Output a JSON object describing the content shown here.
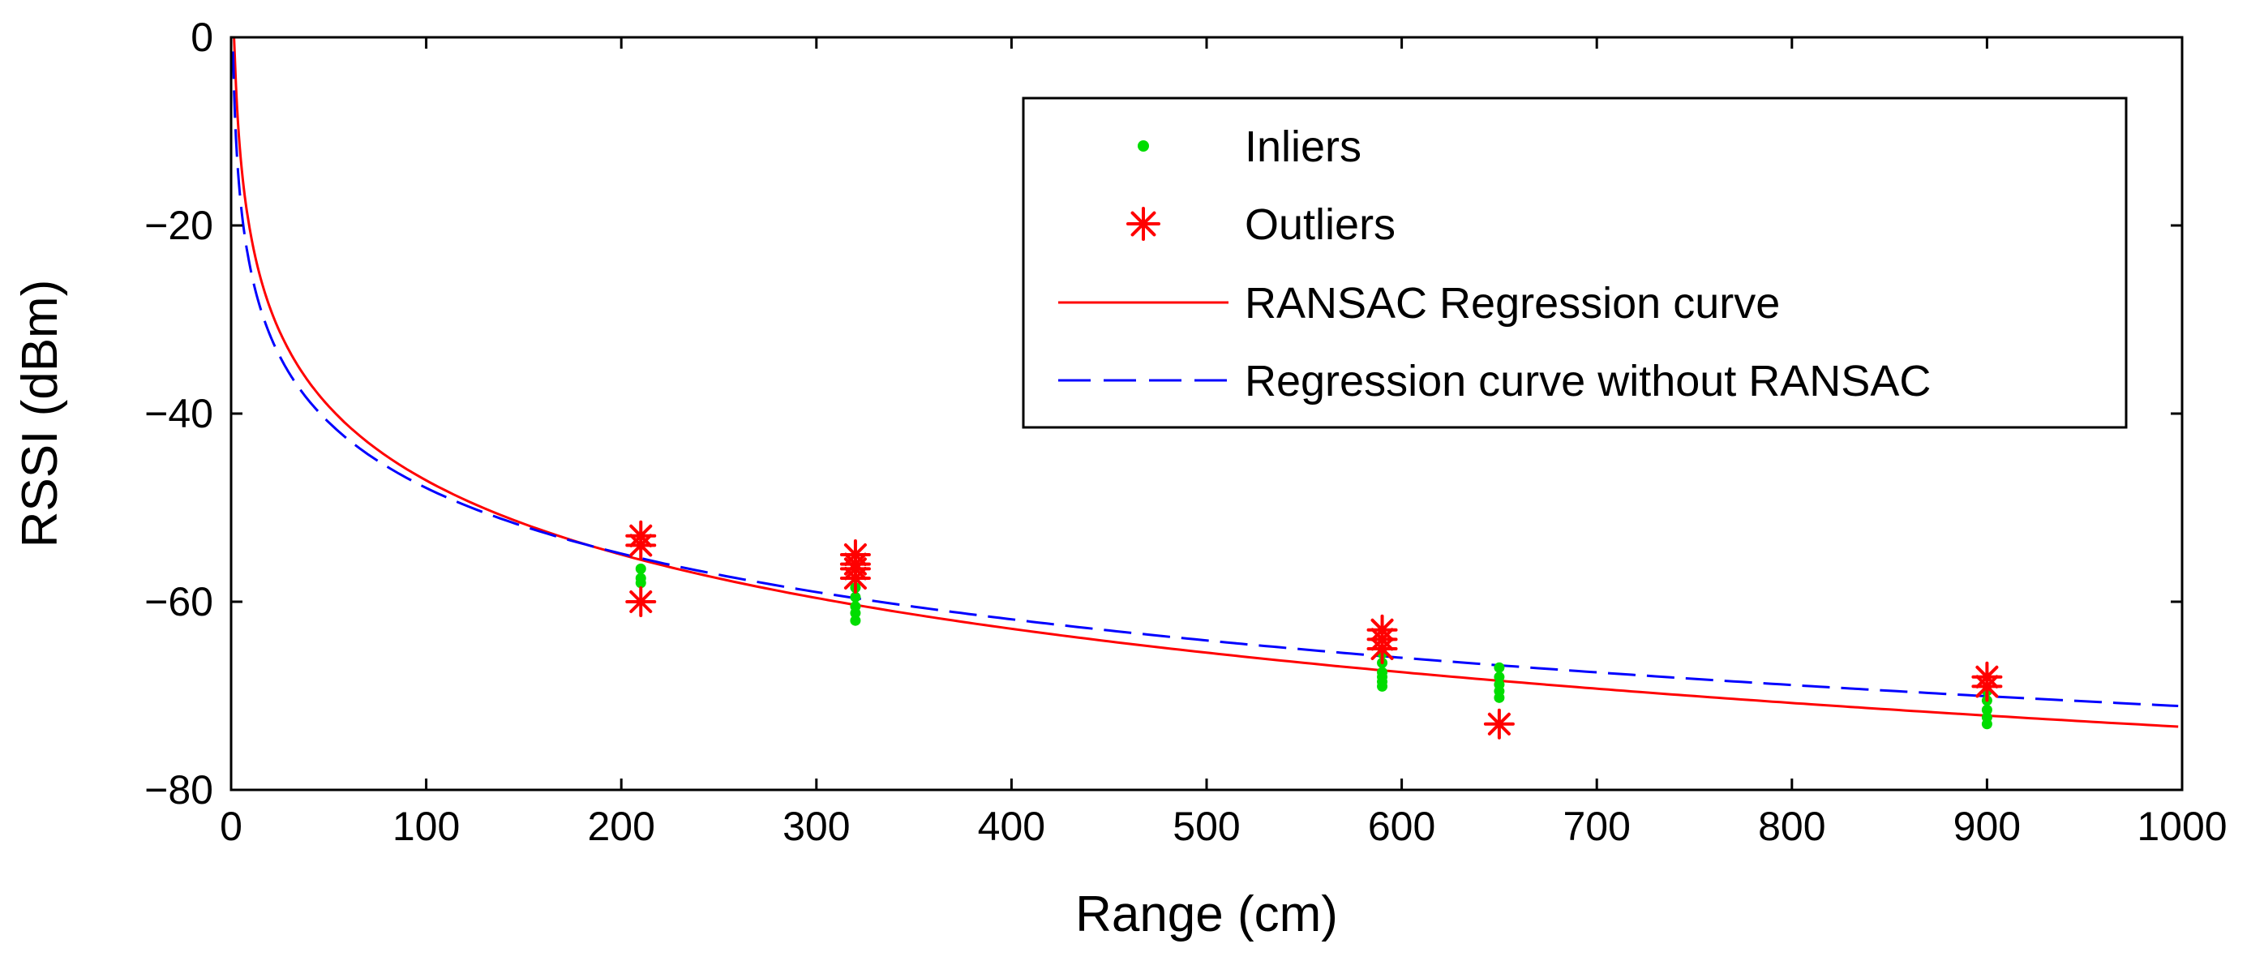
{
  "chart_data": {
    "type": "scatter",
    "title": "",
    "xlabel": "Range (cm)",
    "ylabel": "RSSI (dBm)",
    "xlim": [
      0,
      1000
    ],
    "ylim": [
      -80,
      0
    ],
    "xticks": [
      0,
      100,
      200,
      300,
      400,
      500,
      600,
      700,
      800,
      900,
      1000
    ],
    "yticks": [
      0,
      -20,
      -40,
      -60,
      -80
    ],
    "grid": false,
    "legend_position": "top-right",
    "series": [
      {
        "name": "Inliers",
        "kind": "points",
        "color": "#00dd00",
        "x": [
          210,
          210,
          210,
          320,
          320,
          320,
          320,
          320,
          590,
          590,
          590,
          590,
          590,
          590,
          650,
          650,
          650,
          650,
          650,
          900,
          900,
          900,
          900,
          900
        ],
        "y": [
          -56.5,
          -57.5,
          -58,
          -58.5,
          -59.5,
          -60.5,
          -61.2,
          -62,
          -65.5,
          -66.5,
          -67.5,
          -68,
          -68.5,
          -69,
          -67,
          -68,
          -68.8,
          -69.5,
          -70.2,
          -69.5,
          -70.5,
          -71.5,
          -72.3,
          -73
        ]
      },
      {
        "name": "Outliers",
        "kind": "asterisk",
        "color": "#ff0000",
        "x": [
          210,
          210,
          210,
          320,
          320,
          320,
          320,
          590,
          590,
          590,
          650,
          900,
          900
        ],
        "y": [
          -53,
          -54,
          -60,
          -55,
          -56,
          -56.5,
          -57.5,
          -63,
          -64,
          -65,
          -73,
          -68,
          -69
        ]
      },
      {
        "name": "RANSAC Regression curve",
        "kind": "line",
        "style": "solid",
        "color": "#ff0000",
        "model": "y = a - b*log10(x)",
        "a": 5.3,
        "b": 26.2
      },
      {
        "name": "Regression curve without RANSAC",
        "kind": "line",
        "style": "dashed",
        "color": "#0000ff",
        "model": "y = a - b*log10(x)",
        "a": -1.5,
        "b": 23.2
      }
    ]
  }
}
